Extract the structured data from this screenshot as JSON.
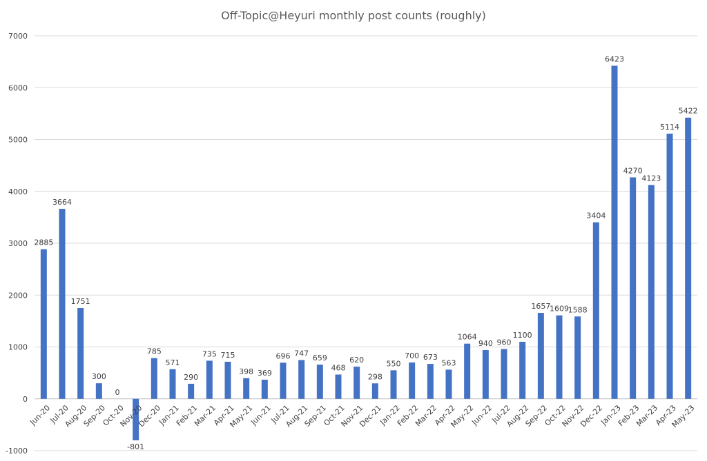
{
  "chart_data": {
    "type": "bar",
    "title": "Off-Topic@Heyuri monthly post counts (roughly)",
    "xlabel": "",
    "ylabel": "",
    "ylim": [
      -1000,
      7000
    ],
    "yticks": [
      -1000,
      0,
      1000,
      2000,
      3000,
      4000,
      5000,
      6000,
      7000
    ],
    "grid": true,
    "legend": "none",
    "bar_color": "#4472c4",
    "categories": [
      "Jun-20",
      "Jul-20",
      "Aug-20",
      "Sep-20",
      "Oct-20",
      "Nov-20",
      "Dec-20",
      "Jan-21",
      "Feb-21",
      "Mar-21",
      "Apr-21",
      "May-21",
      "Jun-21",
      "Jul-21",
      "Aug-21",
      "Sep-21",
      "Oct-21",
      "Nov-21",
      "Dec-21",
      "Jan-22",
      "Feb-22",
      "Mar-22",
      "Apr-22",
      "May-22",
      "Jun-22",
      "Jul-22",
      "Aug-22",
      "Sep-22",
      "Oct-22",
      "Nov-22",
      "Dec-22",
      "Jan-23",
      "Feb-23",
      "Mar-23",
      "Apr-23",
      "May-23"
    ],
    "values": [
      2885,
      3664,
      1751,
      300,
      0,
      -801,
      785,
      571,
      290,
      735,
      715,
      398,
      369,
      696,
      747,
      659,
      468,
      620,
      298,
      550,
      700,
      673,
      563,
      1064,
      940,
      960,
      1100,
      1657,
      1609,
      1588,
      3404,
      6423,
      4270,
      4123,
      5114,
      5422
    ]
  }
}
